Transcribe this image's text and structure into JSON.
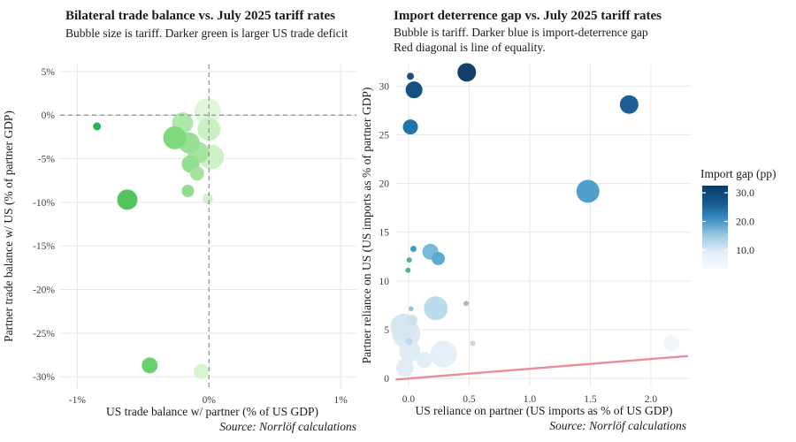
{
  "page": {
    "background": "#ffffff"
  },
  "colors": {
    "gridline": "#e7e7e7",
    "zero_dash": "#8c8c8c",
    "equality_line": "#ec8c99",
    "green_dark": "#28b450",
    "green_light": "#dff6da",
    "blue_dark": "#123f6a",
    "blue_light": "#eff5fa"
  },
  "charts": [
    {
      "id": "trade_balance",
      "title": "Bilateral trade balance vs. July 2025 tariff rates",
      "subtitle_lines": [
        "Bubble size is tariff. Darker green is larger US trade deficit"
      ],
      "source": "Source: Norrlöf calculations",
      "chart_data": {
        "type": "scatter",
        "xlabel": "US trade balance w/ partner (% of US GDP)",
        "ylabel": "Partner trade balance w/ US (% of partner GDP)",
        "xlim": [
          -1.13,
          1.12
        ],
        "ylim": [
          -31.4,
          5.8
        ],
        "x_ticks": [
          {
            "v": -1,
            "label": "-1%"
          },
          {
            "v": 0,
            "label": "0%"
          },
          {
            "v": 1,
            "label": "1%"
          }
        ],
        "y_ticks": [
          {
            "v": 5,
            "label": "5%"
          },
          {
            "v": 0,
            "label": "0%"
          },
          {
            "v": -5,
            "label": "-5%"
          },
          {
            "v": -10,
            "label": "-10%"
          },
          {
            "v": -15,
            "label": "-15%"
          },
          {
            "v": -20,
            "label": "-20%"
          },
          {
            "v": -25,
            "label": "-25%"
          },
          {
            "v": -30,
            "label": "-30%"
          }
        ],
        "x_gridlines": [
          -1,
          1
        ],
        "zero_lines": {
          "x": 0,
          "y": 0,
          "style": "dashed"
        },
        "grid": true,
        "points": [
          {
            "x": -0.01,
            "y": 0.4,
            "r": 15,
            "c": "#dff6da"
          },
          {
            "x": 0.02,
            "y": -4.8,
            "r": 14,
            "c": "#cdf1c6"
          },
          {
            "x": 0.0,
            "y": -1.6,
            "r": 13,
            "c": "#c8f0c2"
          },
          {
            "x": -0.2,
            "y": -0.9,
            "r": 12,
            "c": "#aee8a8"
          },
          {
            "x": -0.08,
            "y": -4.3,
            "r": 12,
            "c": "#a6e5a0"
          },
          {
            "x": -0.15,
            "y": -3.2,
            "r": 12,
            "c": "#96e094"
          },
          {
            "x": -0.26,
            "y": -2.6,
            "r": 13,
            "c": "#7fd97f"
          },
          {
            "x": -0.14,
            "y": -5.6,
            "r": 10,
            "c": "#92df90"
          },
          {
            "x": -0.09,
            "y": -6.7,
            "r": 8,
            "c": "#a2e49d"
          },
          {
            "x": -0.16,
            "y": -8.7,
            "r": 7,
            "c": "#8edc8c"
          },
          {
            "x": -0.01,
            "y": -9.6,
            "r": 6,
            "c": "#d2f2cb"
          },
          {
            "x": -0.06,
            "y": -29.4,
            "r": 8.5,
            "c": "#d8f3d0"
          },
          {
            "x": -0.45,
            "y": -28.7,
            "r": 9,
            "c": "#68d16b"
          },
          {
            "x": -0.62,
            "y": -9.7,
            "r": 11.5,
            "c": "#50c55e"
          },
          {
            "x": -0.85,
            "y": -1.3,
            "r": 4.5,
            "c": "#28b450"
          }
        ]
      }
    },
    {
      "id": "import_gap",
      "title": "Import deterrence gap vs. July 2025 tariff rates",
      "subtitle_lines": [
        "Bubble is tariff. Darker blue is import-deterrence gap",
        "Red diagonal is line of equality."
      ],
      "source": "Source: Norrlöf calculations",
      "chart_data": {
        "type": "scatter",
        "xlabel": "US reliance on partner (US imports as % of US GDP)",
        "ylabel": "Partner reliance on US (US imports as % of partner GDP)",
        "xlim": [
          -0.102,
          2.336
        ],
        "ylim": [
          -0.8,
          32.2
        ],
        "x_ticks": [
          {
            "v": 0.0,
            "label": "0.0"
          },
          {
            "v": 0.5,
            "label": "0.5"
          },
          {
            "v": 1.0,
            "label": "1.0"
          },
          {
            "v": 1.5,
            "label": "1.5"
          },
          {
            "v": 2.0,
            "label": "2.0"
          }
        ],
        "y_ticks": [
          {
            "v": 0,
            "label": "0"
          },
          {
            "v": 5,
            "label": "5"
          },
          {
            "v": 10,
            "label": "10"
          },
          {
            "v": 15,
            "label": "15"
          },
          {
            "v": 20,
            "label": "20"
          },
          {
            "v": 25,
            "label": "25"
          },
          {
            "v": 30,
            "label": "30"
          }
        ],
        "grid": true,
        "equality_line": {
          "x1": -0.1,
          "y1": -0.1,
          "x2": 2.3,
          "y2": 2.3,
          "color": "#ec8c99",
          "width": 2.4
        },
        "legend": {
          "title": "Import gap (pp)",
          "vmin": 3.5,
          "vmax": 32.5,
          "ticks": [
            {
              "v": 30,
              "label": "30.0"
            },
            {
              "v": 20,
              "label": "20.0"
            },
            {
              "v": 10,
              "label": "10.0"
            }
          ],
          "gradient": [
            "#0a3c65",
            "#16578b",
            "#3c8ec4",
            "#9cc8e4",
            "#e2eef7",
            "#f7fafd"
          ]
        },
        "points": [
          {
            "x": 2.17,
            "y": 3.6,
            "r": 9,
            "c": "#eff5fa"
          },
          {
            "x": 0.29,
            "y": 2.5,
            "r": 15,
            "c": "#e4eff7"
          },
          {
            "x": 0.13,
            "y": 1.9,
            "r": 9,
            "c": "#e2eef6"
          },
          {
            "x": -0.03,
            "y": 1.1,
            "r": 10,
            "c": "#dfecf5"
          },
          {
            "x": -0.02,
            "y": 4.6,
            "r": 16,
            "c": "#dbe9f3"
          },
          {
            "x": -0.04,
            "y": 5.3,
            "r": 15,
            "c": "#d6e6f1"
          },
          {
            "x": 0.01,
            "y": 2.8,
            "r": 12,
            "c": "#dcebf4"
          },
          {
            "x": 0.03,
            "y": 6.0,
            "r": 6,
            "c": "#cde1ee"
          },
          {
            "x": 0.005,
            "y": 3.8,
            "r": 4,
            "c": "#c2d7e7"
          },
          {
            "x": 0.225,
            "y": 7.2,
            "r": 13.5,
            "c": "#bedbeb"
          },
          {
            "x": 0.53,
            "y": 3.6,
            "r": 3,
            "c": "#ccd6d4"
          },
          {
            "x": 0.475,
            "y": 7.7,
            "r": 3,
            "c": "#a9bcae"
          },
          {
            "x": 0.02,
            "y": 7.15,
            "r": 2.8,
            "c": "#93c6dc"
          },
          {
            "x": 0.18,
            "y": 13.0,
            "r": 9,
            "c": "#79bad9"
          },
          {
            "x": 0.245,
            "y": 12.3,
            "r": 7.5,
            "c": "#5cabd0"
          },
          {
            "x": 0.04,
            "y": 13.3,
            "r": 3.5,
            "c": "#3f9dc0"
          },
          {
            "x": 0.005,
            "y": 12.15,
            "r": 3,
            "c": "#52ae9e"
          },
          {
            "x": -0.005,
            "y": 11.1,
            "r": 3,
            "c": "#56b1a1"
          },
          {
            "x": 1.48,
            "y": 19.2,
            "r": 13,
            "c": "#4f9fca"
          },
          {
            "x": 1.82,
            "y": 28.1,
            "r": 10.5,
            "c": "#1d5e95"
          },
          {
            "x": 0.015,
            "y": 25.8,
            "r": 8.5,
            "c": "#2173a9"
          },
          {
            "x": 0.045,
            "y": 29.6,
            "r": 9.5,
            "c": "#175083"
          },
          {
            "x": 0.015,
            "y": 31.0,
            "r": 4,
            "c": "#1c4f7c"
          },
          {
            "x": 0.48,
            "y": 31.4,
            "r": 10.5,
            "c": "#133f6a"
          }
        ]
      }
    }
  ]
}
